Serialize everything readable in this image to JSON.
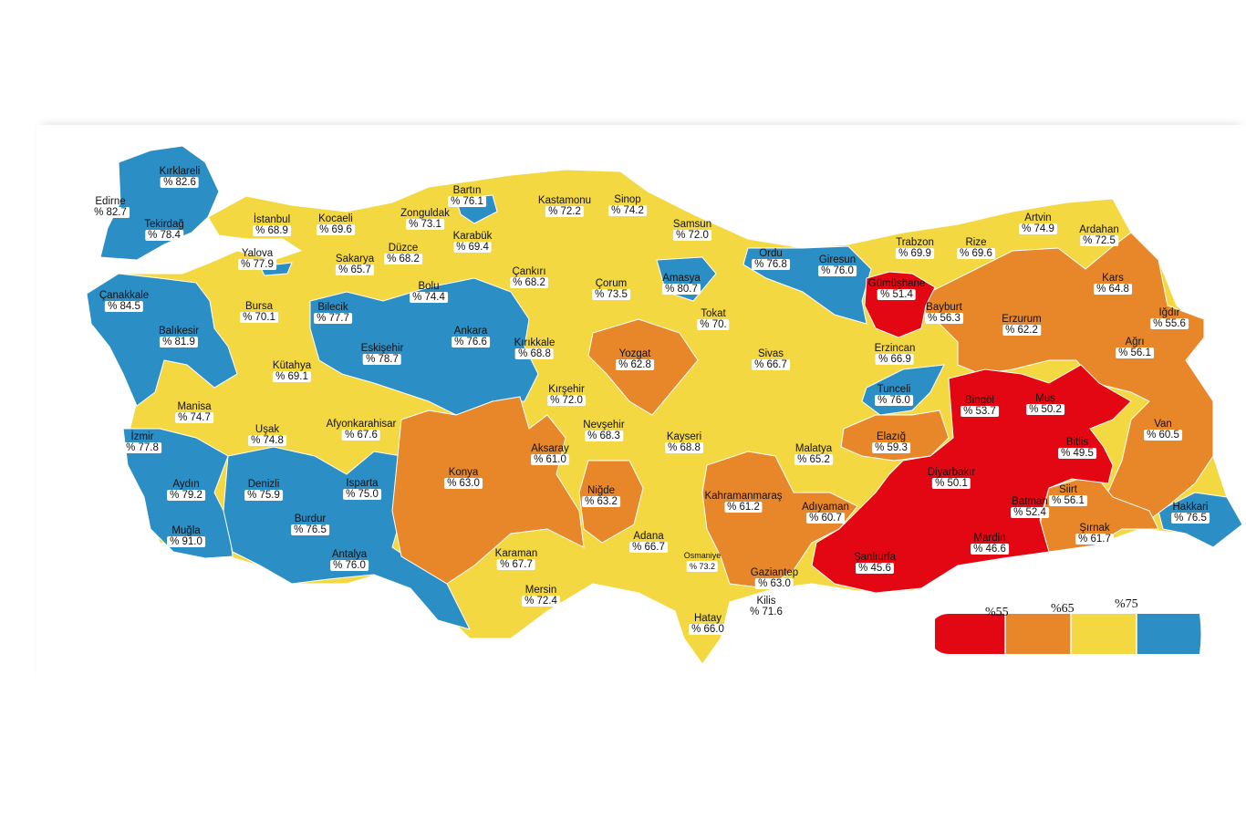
{
  "legend": {
    "thresholds": [
      "%55",
      "%65",
      "%75"
    ],
    "colors": {
      "red": "#e30613",
      "orange": "#e8862a",
      "yellow": "#f4d841",
      "blue": "#2b8ec4"
    }
  },
  "provinces": [
    {
      "name": "Kırklareli",
      "value": "% 82.6",
      "color": "blue"
    },
    {
      "name": "Edirne",
      "value": "% 82.7",
      "color": "blue"
    },
    {
      "name": "Tekirdağ",
      "value": "% 78.4",
      "color": "blue"
    },
    {
      "name": "İstanbul",
      "value": "% 68.9",
      "color": "yellow"
    },
    {
      "name": "Kocaeli",
      "value": "% 69.6",
      "color": "yellow"
    },
    {
      "name": "Yalova",
      "value": "% 77.9",
      "color": "blue"
    },
    {
      "name": "Sakarya",
      "value": "% 65.7",
      "color": "yellow"
    },
    {
      "name": "Düzce",
      "value": "% 68.2",
      "color": "yellow"
    },
    {
      "name": "Zonguldak",
      "value": "% 73.1",
      "color": "yellow"
    },
    {
      "name": "Bartın",
      "value": "% 76.1",
      "color": "blue"
    },
    {
      "name": "Karabük",
      "value": "% 69.4",
      "color": "yellow"
    },
    {
      "name": "Kastamonu",
      "value": "% 72.2",
      "color": "yellow"
    },
    {
      "name": "Sinop",
      "value": "% 74.2",
      "color": "yellow"
    },
    {
      "name": "Samsun",
      "value": "% 72.0",
      "color": "yellow"
    },
    {
      "name": "Ordu",
      "value": "% 76.8",
      "color": "blue"
    },
    {
      "name": "Giresun",
      "value": "% 76.0",
      "color": "blue"
    },
    {
      "name": "Trabzon",
      "value": "% 69.9",
      "color": "yellow"
    },
    {
      "name": "Rize",
      "value": "% 69.6",
      "color": "yellow"
    },
    {
      "name": "Artvin",
      "value": "% 74.9",
      "color": "yellow"
    },
    {
      "name": "Ardahan",
      "value": "% 72.5",
      "color": "yellow"
    },
    {
      "name": "Çanakkale",
      "value": "% 84.5",
      "color": "blue"
    },
    {
      "name": "Bursa",
      "value": "% 70.1",
      "color": "yellow"
    },
    {
      "name": "Bilecik",
      "value": "% 77.7",
      "color": "blue"
    },
    {
      "name": "Bolu",
      "value": "% 74.4",
      "color": "yellow"
    },
    {
      "name": "Çankırı",
      "value": "% 68.2",
      "color": "yellow"
    },
    {
      "name": "Çorum",
      "value": "% 73.5",
      "color": "yellow"
    },
    {
      "name": "Amasya",
      "value": "% 80.7",
      "color": "blue"
    },
    {
      "name": "Tokat",
      "value": "% 70.",
      "color": "yellow"
    },
    {
      "name": "Gümüşhane",
      "value": "% 51.4",
      "color": "red"
    },
    {
      "name": "Bayburt",
      "value": "% 56.3",
      "color": "orange"
    },
    {
      "name": "Erzurum",
      "value": "% 62.2",
      "color": "orange"
    },
    {
      "name": "Kars",
      "value": "% 64.8",
      "color": "orange"
    },
    {
      "name": "Iğdır",
      "value": "% 55.6",
      "color": "orange"
    },
    {
      "name": "Balıkesir",
      "value": "% 81.9",
      "color": "blue"
    },
    {
      "name": "Eskişehir",
      "value": "% 78.7",
      "color": "blue"
    },
    {
      "name": "Ankara",
      "value": "% 76.6",
      "color": "blue"
    },
    {
      "name": "Kırıkkale",
      "value": "% 68.8",
      "color": "yellow"
    },
    {
      "name": "Yozgat",
      "value": "% 62.8",
      "color": "orange"
    },
    {
      "name": "Sivas",
      "value": "% 66.7",
      "color": "yellow"
    },
    {
      "name": "Erzincan",
      "value": "% 66.9",
      "color": "yellow"
    },
    {
      "name": "Ağrı",
      "value": "% 56.1",
      "color": "orange"
    },
    {
      "name": "Kütahya",
      "value": "% 69.1",
      "color": "yellow"
    },
    {
      "name": "Kırşehir",
      "value": "% 72.0",
      "color": "yellow"
    },
    {
      "name": "Tunceli",
      "value": "% 76.0",
      "color": "blue"
    },
    {
      "name": "Bingöl",
      "value": "% 53.7",
      "color": "red"
    },
    {
      "name": "Muş",
      "value": "% 50.2",
      "color": "red"
    },
    {
      "name": "Manisa",
      "value": "% 74.7",
      "color": "yellow"
    },
    {
      "name": "Uşak",
      "value": "% 74.8",
      "color": "yellow"
    },
    {
      "name": "Afyonkarahisar",
      "value": "% 67.6",
      "color": "yellow"
    },
    {
      "name": "Nevşehir",
      "value": "% 68.3",
      "color": "yellow"
    },
    {
      "name": "Kayseri",
      "value": "% 68.8",
      "color": "yellow"
    },
    {
      "name": "Van",
      "value": "% 60.5",
      "color": "orange"
    },
    {
      "name": "İzmir",
      "value": "% 77.8",
      "color": "blue"
    },
    {
      "name": "Aksaray",
      "value": "% 61.0",
      "color": "orange"
    },
    {
      "name": "Elazığ",
      "value": "% 59.3",
      "color": "orange"
    },
    {
      "name": "Bitlis",
      "value": "% 49.5",
      "color": "red"
    },
    {
      "name": "Malatya",
      "value": "% 65.2",
      "color": "yellow"
    },
    {
      "name": "Konya",
      "value": "% 63.0",
      "color": "orange"
    },
    {
      "name": "Aydın",
      "value": "% 79.2",
      "color": "blue"
    },
    {
      "name": "Denizli",
      "value": "% 75.9",
      "color": "blue"
    },
    {
      "name": "Isparta",
      "value": "% 75.0",
      "color": "blue"
    },
    {
      "name": "Diyarbakır",
      "value": "% 50.1",
      "color": "red"
    },
    {
      "name": "Niğde",
      "value": "% 63.2",
      "color": "orange"
    },
    {
      "name": "Kahramanmaraş",
      "value": "% 61.2",
      "color": "orange"
    },
    {
      "name": "Siirt",
      "value": "% 56.1",
      "color": "orange"
    },
    {
      "name": "Batman",
      "value": "% 52.4",
      "color": "red"
    },
    {
      "name": "Hakkari",
      "value": "% 76.5",
      "color": "blue"
    },
    {
      "name": "Adıyaman",
      "value": "% 60.7",
      "color": "orange"
    },
    {
      "name": "Burdur",
      "value": "% 76.5",
      "color": "blue"
    },
    {
      "name": "Muğla",
      "value": "% 91.0",
      "color": "blue"
    },
    {
      "name": "Şırnak",
      "value": "% 61.7",
      "color": "orange"
    },
    {
      "name": "Adana",
      "value": "% 66.7",
      "color": "yellow"
    },
    {
      "name": "Osmaniye",
      "value": "% 73.2",
      "color": "yellow"
    },
    {
      "name": "Mardin",
      "value": "% 46.6",
      "color": "red"
    },
    {
      "name": "Karaman",
      "value": "% 67.7",
      "color": "yellow"
    },
    {
      "name": "Antalya",
      "value": "% 76.0",
      "color": "blue"
    },
    {
      "name": "Gaziantep",
      "value": "% 63.0",
      "color": "orange"
    },
    {
      "name": "Şanlıurfa",
      "value": "% 45.6",
      "color": "red"
    },
    {
      "name": "Mersin",
      "value": "% 72.4",
      "color": "yellow"
    },
    {
      "name": "Kilis",
      "value": "% 71.6",
      "color": "yellow"
    },
    {
      "name": "Hatay",
      "value": "% 66.0",
      "color": "yellow"
    }
  ]
}
